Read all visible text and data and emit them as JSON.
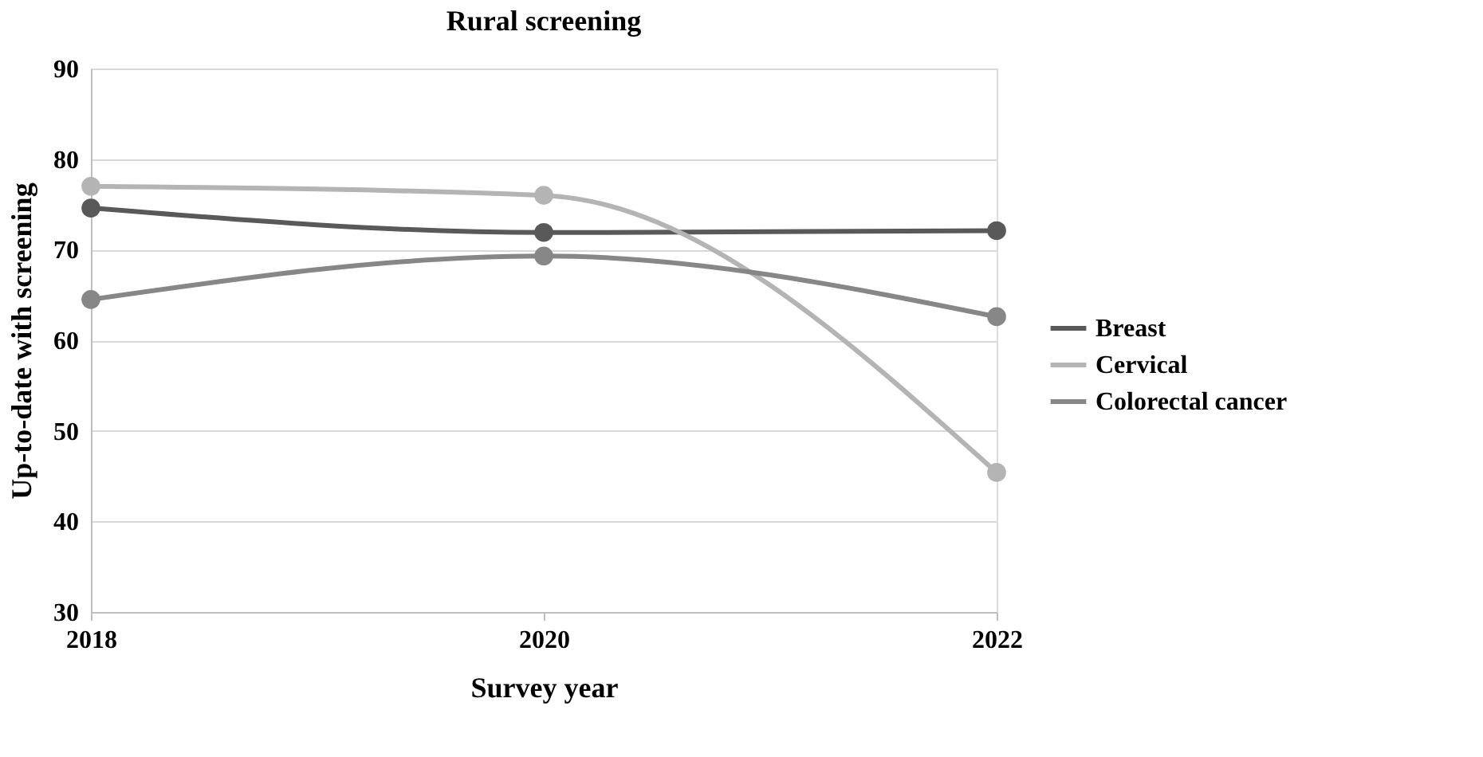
{
  "chart_data": {
    "type": "line",
    "title": "Rural screening",
    "xlabel": "Survey year",
    "ylabel": "Up-to-date with screening",
    "x": [
      2018,
      2020,
      2022
    ],
    "xlim": [
      2018,
      2022
    ],
    "xticks": [
      2018,
      2020,
      2022
    ],
    "ylim": [
      30,
      90
    ],
    "yticks": [
      30,
      40,
      50,
      60,
      70,
      80,
      90
    ],
    "grid": "y",
    "legend": "right",
    "marker": "circle",
    "line_style": "solid",
    "series": [
      {
        "name": "Breast",
        "color": "#595959",
        "values": [
          74.6,
          71.9,
          72.1
        ]
      },
      {
        "name": "Cervical",
        "color": "#b4b4b4",
        "values": [
          77.0,
          76.0,
          45.4
        ]
      },
      {
        "name": "Colorectal cancer",
        "color": "#878787",
        "values": [
          64.5,
          69.3,
          62.6
        ]
      }
    ]
  }
}
